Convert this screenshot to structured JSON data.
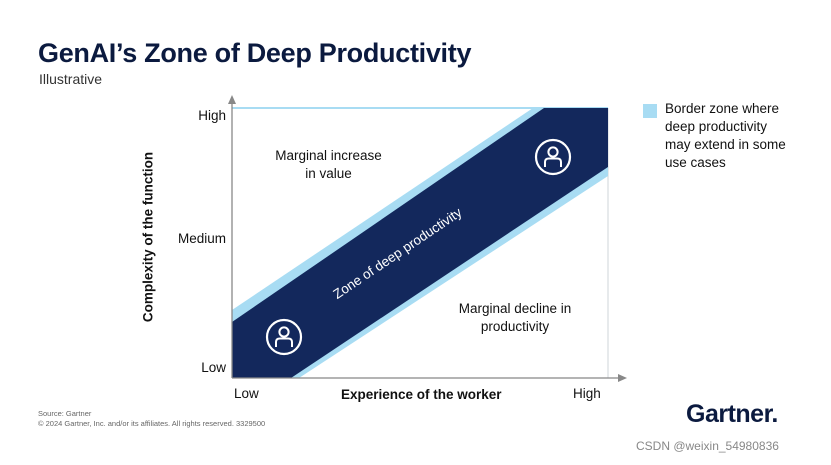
{
  "header": {
    "title": "GenAI’s Zone of Deep Productivity",
    "subtitle": "Illustrative"
  },
  "axes": {
    "y_label": "Complexity of the function",
    "y_ticks": [
      "High",
      "Medium",
      "Low"
    ],
    "x_label": "Experience of the worker",
    "x_ticks": [
      "Low",
      "High"
    ]
  },
  "regions": {
    "upper": [
      "Marginal increase",
      "in value"
    ],
    "band": "Zone of deep productivity",
    "lower": [
      "Marginal decline in",
      "productivity"
    ]
  },
  "legend": {
    "text": "Border zone where deep productivity may extend in some use cases",
    "swatch_color": "#a8dcf3"
  },
  "colors": {
    "band": "#13285c",
    "border_zone": "#a8dcf3"
  },
  "icons": [
    "person-icon",
    "person-icon"
  ],
  "footer": {
    "source": "Source: Gartner",
    "copyright": "© 2024 Gartner, Inc. and/or its affiliates. All rights reserved. 3329500",
    "brand": "Gartner."
  },
  "watermark": "CSDN @weixin_54980836"
}
